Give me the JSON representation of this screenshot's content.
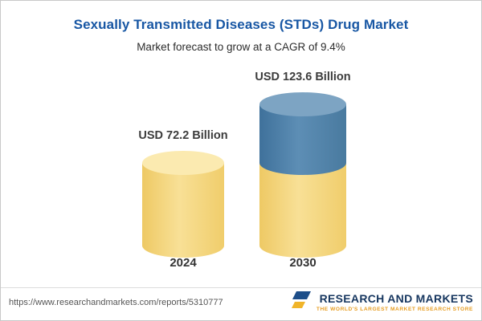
{
  "header": {
    "title": "Sexually Transmitted Diseases (STDs) Drug Market",
    "subtitle": "Market forecast to grow at a CAGR of 9.4%"
  },
  "chart_data": {
    "type": "bar",
    "subtype": "3d-cylinder",
    "categories": [
      "2024",
      "2030"
    ],
    "values": [
      72.2,
      123.6
    ],
    "value_labels": [
      "USD 72.2 Billion",
      "USD 123.6 Billion"
    ],
    "unit": "USD Billion",
    "title": "Sexually Transmitted Diseases (STDs) Drug Market",
    "subtitle": "Market forecast to grow at a CAGR of 9.4%",
    "cagr": "9.4%",
    "grid": false,
    "legend": "none",
    "colors": {
      "base_segment": "#f3d57c",
      "base_segment_top": "#fbeab0",
      "growth_segment": "#4e7fa8",
      "growth_segment_top": "#7da4c3",
      "title": "#1857a4"
    }
  },
  "footer": {
    "url": "https://www.researchandmarkets.com/reports/5310777",
    "logo_text": "RESEARCH AND MARKETS",
    "logo_tagline": "THE WORLD'S LARGEST MARKET RESEARCH STORE"
  }
}
